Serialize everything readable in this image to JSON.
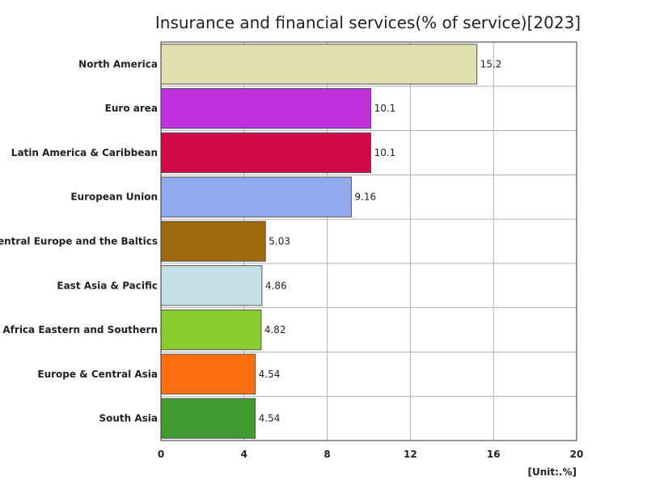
{
  "chart_data": {
    "type": "bar",
    "orientation": "horizontal",
    "title": "Insurance and financial services(% of service)[2023]",
    "unit_label": "[Unit:.%]",
    "xlim": [
      0,
      20
    ],
    "x_ticks": [
      0,
      4,
      8,
      12,
      16,
      20
    ],
    "grid": true,
    "categories": [
      "North America",
      "Euro area",
      "Latin America & Caribbean",
      "European Union",
      "Central Europe and the Baltics",
      "East Asia & Pacific",
      "Africa Eastern and Southern",
      "Europe & Central Asia",
      "South Asia"
    ],
    "values": [
      15.2,
      10.1,
      10.1,
      9.16,
      5.03,
      4.86,
      4.82,
      4.54,
      4.54
    ],
    "value_labels": [
      "15.2",
      "10.1",
      "10.1",
      "9.16",
      "5.03",
      "4.86",
      "4.82",
      "4.54",
      "4.54"
    ],
    "colors": [
      "#e0e0b0",
      "#c030e0",
      "#d00a48",
      "#90aaf0",
      "#a0680c",
      "#c4e0e6",
      "#88cc30",
      "#ff7010",
      "#409a30"
    ]
  }
}
